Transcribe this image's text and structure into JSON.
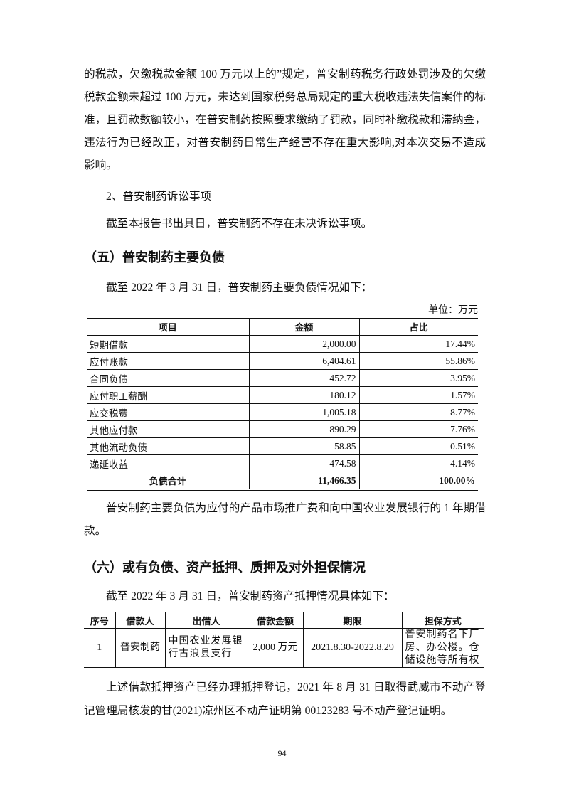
{
  "paragraphs": {
    "p1": "的税款，欠缴税款金额 100 万元以上的”规定，普安制药税务行政处罚涉及的欠缴税款金额未超过 100 万元，未达到国家税务总局规定的重大税收违法失信案件的标准，且罚款数额较小，在普安制药按照要求缴纳了罚款，同时补缴税款和滞纳金，违法行为已经改正，对普安制药日常生产经营不存在重大影响,对本次交易不造成影响。",
    "p2": "2、普安制药诉讼事项",
    "p3": "截至本报告书出具日，普安制药不存在未决诉讼事项。",
    "h5": "（五）普安制药主要负债",
    "p4": "截至 2022 年 3 月 31 日，普安制药主要负债情况如下：",
    "unit": "单位：万元",
    "p5": "普安制药主要负债为应付的产品市场推广费和向中国农业发展银行的 1 年期借款。",
    "h6": "（六）或有负债、资产抵押、质押及对外担保情况",
    "p6": "截至 2022 年 3 月 31 日，普安制药资产抵押情况具体如下：",
    "p7": "上述借款抵押资产已经办理抵押登记，2021 年 8 月 31 日取得武威市不动产登记管理局核发的甘(2021)凉州区不动产证明第 00123283 号不动产登记证明。"
  },
  "liabilities_table": {
    "headers": [
      "项目",
      "金额",
      "占比"
    ],
    "rows": [
      [
        "短期借款",
        "2,000.00",
        "17.44%"
      ],
      [
        "应付账款",
        "6,404.61",
        "55.86%"
      ],
      [
        "合同负债",
        "452.72",
        "3.95%"
      ],
      [
        "应付职工薪酬",
        "180.12",
        "1.57%"
      ],
      [
        "应交税费",
        "1,005.18",
        "8.77%"
      ],
      [
        "其他应付款",
        "890.29",
        "7.76%"
      ],
      [
        "其他流动负债",
        "58.85",
        "0.51%"
      ],
      [
        "递延收益",
        "474.58",
        "4.14%"
      ]
    ],
    "total": [
      "负债合计",
      "11,466.35",
      "100.00%"
    ]
  },
  "mortgage_table": {
    "headers": [
      "序号",
      "借款人",
      "出借人",
      "借款金额",
      "期限",
      "担保方式"
    ],
    "rows": [
      [
        "1",
        "普安制药",
        "中国农业发展银行古浪县支行",
        "2,000 万元",
        "2021.8.30-2022.8.29",
        "普安制药名下厂房、办公楼。仓储设施等所有权"
      ]
    ]
  },
  "page_number": "94"
}
